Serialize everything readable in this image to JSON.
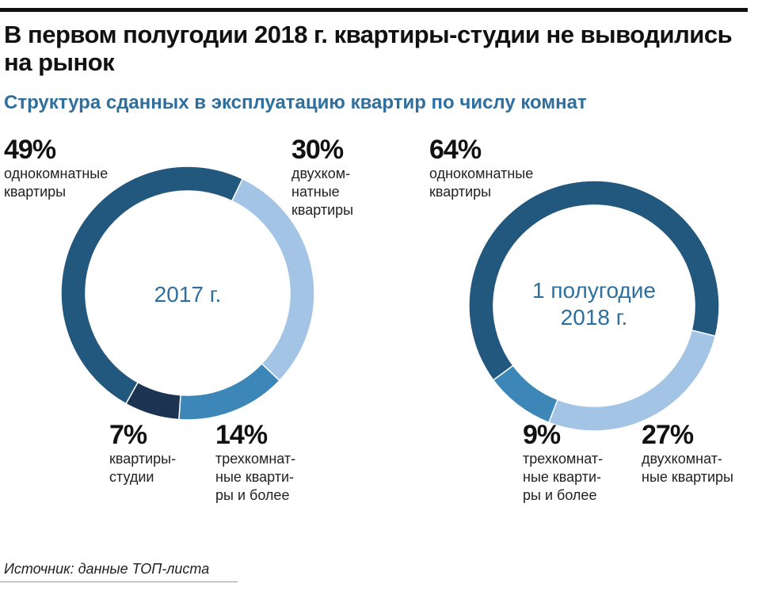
{
  "title": "В первом полугодии 2018 г. квартиры-студии не выводились на рынок",
  "subtitle": "Структура сданных в эксплуатацию квартир по числу комнат",
  "source": "Источник: данные ТОП-листа",
  "colors": {
    "one": "#22577e",
    "two": "#a4c4e6",
    "three": "#3d86b8",
    "studio": "#1c3352"
  },
  "chart_data": [
    {
      "type": "pie",
      "title": "2017 г.",
      "start_deg": 25.6,
      "slices": [
        {
          "key": "two",
          "value": 30,
          "pct": "30%",
          "label": "двухком-\nнатные\nквартиры"
        },
        {
          "key": "three",
          "value": 14,
          "pct": "14%",
          "label": "трехкомнат-\nные кварти-\nры и более"
        },
        {
          "key": "studio",
          "value": 7,
          "pct": "7%",
          "label": "квартиры-\nстудии"
        },
        {
          "key": "one",
          "value": 49,
          "pct": "49%",
          "label": "однокомнатные\nквартиры"
        }
      ]
    },
    {
      "type": "pie",
      "title": "1 полугодие\n2018 г.",
      "start_deg": 104,
      "slices": [
        {
          "key": "two",
          "value": 27,
          "pct": "27%",
          "label": "двухкомнат-\nные квартиры"
        },
        {
          "key": "three",
          "value": 9,
          "pct": "9%",
          "label": "трехкомнат-\nные кварти-\nры и более"
        },
        {
          "key": "one",
          "value": 64,
          "pct": "64%",
          "label": "однокомнатные\nквартиры"
        }
      ]
    }
  ]
}
